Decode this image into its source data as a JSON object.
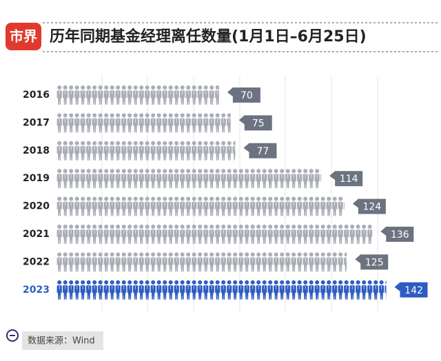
{
  "brand": "市界",
  "chart_data": {
    "type": "pictogram-bar",
    "title": "历年同期基金经理离任数量(1月1日–6月25日)",
    "categories": [
      "2016",
      "2017",
      "2018",
      "2019",
      "2020",
      "2021",
      "2022",
      "2023"
    ],
    "values": [
      70,
      75,
      77,
      114,
      124,
      136,
      125,
      142
    ],
    "colors": [
      "#a9adb5",
      "#a9adb5",
      "#a9adb5",
      "#a9adb5",
      "#a9adb5",
      "#a9adb5",
      "#a9adb5",
      "#2d5cc2"
    ],
    "label_colors": [
      "#6b7381",
      "#6b7381",
      "#6b7381",
      "#6b7381",
      "#6b7381",
      "#6b7381",
      "#6b7381",
      "#2d5cc2"
    ],
    "source": "数据来源：Wind"
  }
}
